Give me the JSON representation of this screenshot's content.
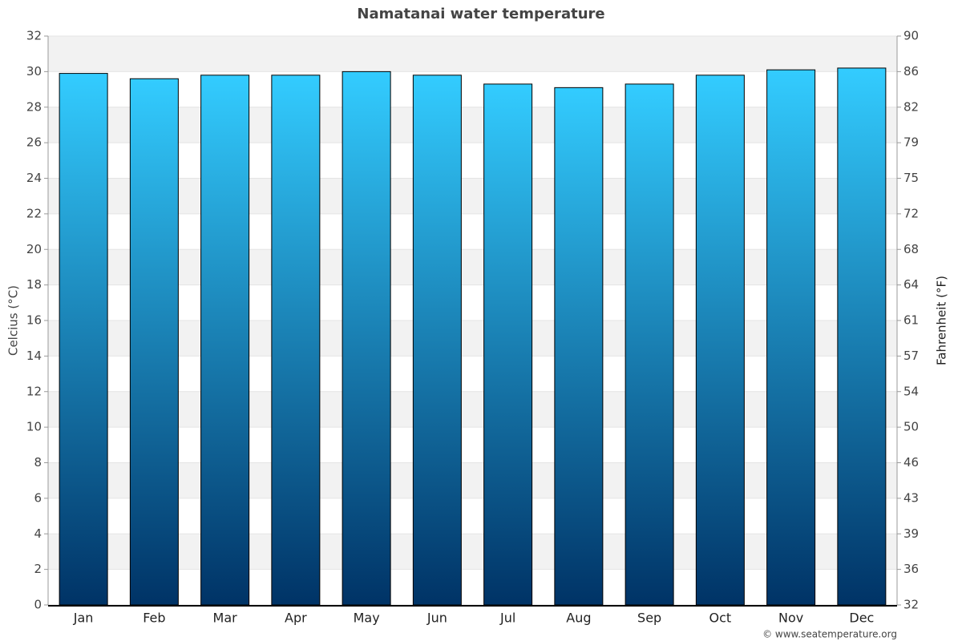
{
  "chart_data": {
    "type": "bar",
    "title": "Namatanai water temperature",
    "categories": [
      "Jan",
      "Feb",
      "Mar",
      "Apr",
      "May",
      "Jun",
      "Jul",
      "Aug",
      "Sep",
      "Oct",
      "Nov",
      "Dec"
    ],
    "values": [
      29.9,
      29.6,
      29.8,
      29.8,
      30.0,
      29.8,
      29.3,
      29.1,
      29.3,
      29.8,
      30.1,
      30.2
    ],
    "color_top": "#33ccff",
    "color_bottom": "#003366",
    "ylabel": "Celcius (°C)",
    "y2label": "Fahrenheit (°F)",
    "ylim": [
      0,
      32
    ],
    "yticks": [
      0,
      2,
      4,
      6,
      8,
      10,
      12,
      14,
      16,
      18,
      20,
      22,
      24,
      26,
      28,
      30,
      32
    ],
    "y2lim": [
      32,
      89.6
    ],
    "y2ticks": [
      32,
      {
        "value": 35.6,
        "label": "36"
      },
      {
        "value": 39.2,
        "label": "39"
      },
      {
        "value": 42.8,
        "label": "43"
      },
      {
        "value": 46.4,
        "label": "46"
      },
      50,
      {
        "value": 53.6,
        "label": "54"
      },
      {
        "value": 57.2,
        "label": "57"
      },
      {
        "value": 60.8,
        "label": "61"
      },
      {
        "value": 64.4,
        "label": "64"
      },
      68,
      {
        "value": 71.6,
        "label": "72"
      },
      {
        "value": 75.2,
        "label": "75"
      },
      {
        "value": 78.8,
        "label": "79"
      },
      {
        "value": 82.4,
        "label": "82"
      },
      86,
      {
        "value": 89.6,
        "label": "90"
      }
    ],
    "grid": true,
    "credit": "© www.seatemperature.org"
  }
}
